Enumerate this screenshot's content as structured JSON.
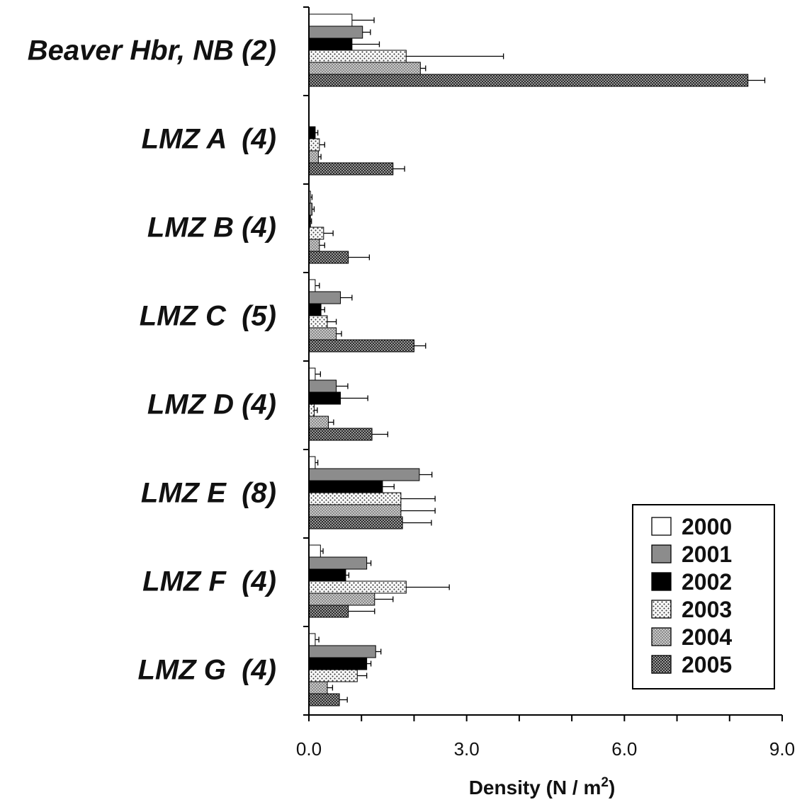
{
  "chart_data": {
    "type": "bar",
    "orientation": "horizontal",
    "title": "",
    "xlabel": "Density (N / m",
    "xlabel_sup": "2",
    "xlabel_close": ")",
    "xlim": [
      0,
      9
    ],
    "xticks": [
      "0.0",
      "3.0",
      "6.0",
      "9.0"
    ],
    "minor_tick_step": 1,
    "grid": false,
    "legend_position": "bottom-right",
    "categories": [
      "Beaver Hbr, NB (2)",
      "LMZ A  (4)",
      "LMZ B (4)",
      "LMZ C  (5)",
      "LMZ D (4)",
      "LMZ E  (8)",
      "LMZ F  (4)",
      "LMZ G  (4)"
    ],
    "series": [
      {
        "name": "2000",
        "pattern": "white",
        "values": [
          0.82,
          0,
          0.03,
          0.12,
          0.12,
          0.12,
          0.22,
          0.12
        ],
        "errors": [
          0.42,
          0,
          0.03,
          0.08,
          0.1,
          0.05,
          0.05,
          0.07
        ]
      },
      {
        "name": "2001",
        "pattern": "gray",
        "values": [
          1.02,
          0,
          0.06,
          0.6,
          0.52,
          2.1,
          1.1,
          1.27
        ],
        "errors": [
          0.15,
          0,
          0.04,
          0.22,
          0.22,
          0.24,
          0.08,
          0.1
        ]
      },
      {
        "name": "2002",
        "pattern": "black",
        "values": [
          0.82,
          0.12,
          0.03,
          0.23,
          0.6,
          1.4,
          0.7,
          1.1
        ],
        "errors": [
          0.52,
          0.05,
          0.02,
          0.07,
          0.52,
          0.22,
          0.06,
          0.08
        ]
      },
      {
        "name": "2003",
        "pattern": "dots",
        "values": [
          1.85,
          0.2,
          0.28,
          0.35,
          0.1,
          1.75,
          1.85,
          0.92
        ],
        "errors": [
          1.85,
          0.1,
          0.18,
          0.17,
          0.06,
          0.65,
          0.82,
          0.18
        ]
      },
      {
        "name": "2004",
        "pattern": "check",
        "values": [
          2.12,
          0.18,
          0.2,
          0.52,
          0.37,
          1.75,
          1.25,
          0.35
        ],
        "errors": [
          0.1,
          0.05,
          0.1,
          0.1,
          0.1,
          0.65,
          0.35,
          0.1
        ]
      },
      {
        "name": "2005",
        "pattern": "dense",
        "values": [
          8.35,
          1.6,
          0.75,
          2.0,
          1.2,
          1.78,
          0.75,
          0.58
        ],
        "errors": [
          0.32,
          0.22,
          0.4,
          0.22,
          0.3,
          0.55,
          0.5,
          0.15
        ]
      }
    ]
  }
}
